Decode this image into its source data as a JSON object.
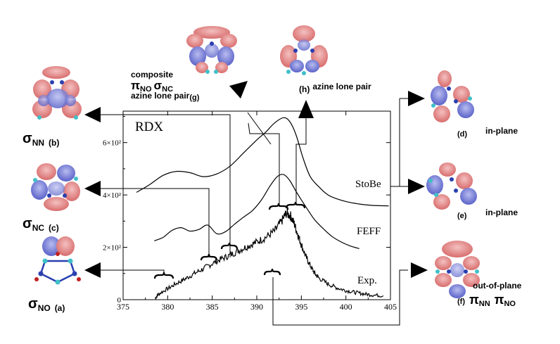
{
  "chart_data": {
    "type": "line",
    "title": "RDX",
    "xlabel": "",
    "ylabel": "",
    "xlim": [
      375,
      405
    ],
    "ylim": [
      0,
      720
    ],
    "x_ticks": [
      375,
      380,
      385,
      390,
      395,
      400,
      405
    ],
    "x_tick_labels": [
      "375",
      "380",
      "385",
      "390",
      "395",
      "400",
      "405"
    ],
    "y_ticks": [
      0,
      200,
      400,
      600
    ],
    "y_tick_labels": [
      "0",
      "2×10²",
      "4×10²",
      "6×10²"
    ],
    "grid": false,
    "series": [
      {
        "name": "StoBe",
        "x": [
          376.5,
          378,
          379.5,
          381,
          382.5,
          384,
          385.5,
          387,
          388.5,
          390,
          391,
          392,
          393,
          393.7,
          394.4,
          395.2,
          396,
          397,
          398,
          399,
          400,
          401,
          402,
          403,
          404.8
        ],
        "y": [
          410,
          440,
          475,
          490,
          485,
          470,
          480,
          510,
          560,
          610,
          640,
          675,
          695,
          680,
          630,
          540,
          470,
          430,
          400,
          385,
          375,
          368,
          363,
          360,
          358
        ]
      },
      {
        "name": "FEFF",
        "x": [
          378.5,
          379.5,
          380.5,
          381.5,
          382.5,
          383.5,
          384.5,
          385.5,
          386.5,
          387.5,
          388.5,
          389.5,
          390.5,
          391.5,
          392.3,
          393,
          393.7,
          394.5,
          395.5,
          396.5,
          397.5,
          398.5,
          399.5,
          400.5,
          401.5
        ],
        "y": [
          225,
          238,
          265,
          275,
          262,
          268,
          285,
          252,
          260,
          288,
          315,
          340,
          380,
          435,
          470,
          478,
          455,
          408,
          355,
          305,
          270,
          240,
          220,
          205,
          195
        ]
      },
      {
        "name": "Exp.",
        "x": [
          378.6,
          379,
          380,
          381,
          382,
          383,
          384,
          385,
          386,
          387,
          388,
          389,
          390,
          391,
          392,
          392.8,
          393.3,
          393.8,
          394.2,
          394.6,
          395,
          395.5,
          396,
          396.5,
          397,
          398,
          399,
          400,
          401,
          402,
          403,
          404.2
        ],
        "y": [
          5,
          22,
          42,
          62,
          80,
          100,
          118,
          138,
          155,
          170,
          188,
          205,
          220,
          238,
          262,
          300,
          330,
          320,
          290,
          250,
          210,
          165,
          130,
          100,
          82,
          60,
          45,
          35,
          28,
          22,
          18,
          15
        ]
      }
    ],
    "annotations": {
      "curve_labels": [
        "StoBe",
        "FEFF",
        "Exp."
      ],
      "orbitals": [
        {
          "label": "σ",
          "sub": "NN",
          "tag": "(b)"
        },
        {
          "label": "σ",
          "sub": "NC",
          "tag": "(c)"
        },
        {
          "label": "σ",
          "sub": "NO",
          "tag": "(a)"
        },
        {
          "line1": "composite",
          "line2_a": "π",
          "line2_a_sub": "NO",
          "line2_b": "σ",
          "line2_b_sub": "NC",
          "line3": "azine lone pair",
          "tag": "(g)"
        },
        {
          "tag": "(h)",
          "text": "azine lone pair"
        },
        {
          "text": "in-plane",
          "tag": "(d)"
        },
        {
          "text": "in-plane",
          "tag": "(e)"
        },
        {
          "text": "out-of-plane",
          "tag": "(f)",
          "pi1": "π",
          "pi1_sub": "NN",
          "pi2": "π",
          "pi2_sub": "NO"
        }
      ]
    }
  },
  "colors": {
    "orbital_red": "#e08a8a",
    "orbital_blue": "#7f86d8",
    "atom_blue": "#2a3fb0",
    "atom_cyan": "#3fc0c8",
    "atom_red": "#c02020"
  }
}
